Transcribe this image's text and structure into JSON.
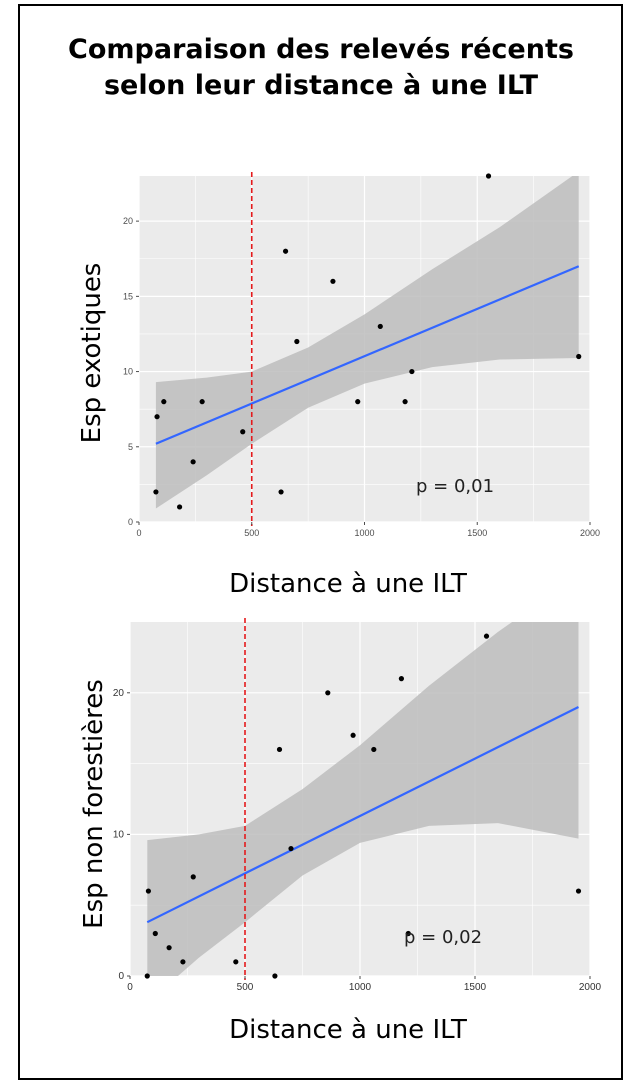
{
  "title": {
    "line1": "Comparaison des relevés récents",
    "line2": "selon leur distance à une ILT"
  },
  "chart_data": [
    {
      "type": "scatter",
      "ylabel": "Esp exotiques",
      "xlabel": "Distance à une ILT",
      "xlim": [
        0,
        2000
      ],
      "ylim": [
        0,
        23
      ],
      "x_ticks": [
        0,
        500,
        1000,
        1500,
        2000
      ],
      "y_ticks": [
        0,
        5,
        10,
        15,
        20
      ],
      "points": [
        {
          "x": 75,
          "y": 2
        },
        {
          "x": 80,
          "y": 7
        },
        {
          "x": 110,
          "y": 8
        },
        {
          "x": 180,
          "y": 1
        },
        {
          "x": 240,
          "y": 4
        },
        {
          "x": 280,
          "y": 8
        },
        {
          "x": 460,
          "y": 6
        },
        {
          "x": 630,
          "y": 2
        },
        {
          "x": 650,
          "y": 18
        },
        {
          "x": 700,
          "y": 12
        },
        {
          "x": 860,
          "y": 16
        },
        {
          "x": 970,
          "y": 8
        },
        {
          "x": 1070,
          "y": 13
        },
        {
          "x": 1180,
          "y": 8
        },
        {
          "x": 1210,
          "y": 10
        },
        {
          "x": 1550,
          "y": 23
        },
        {
          "x": 1950,
          "y": 11
        }
      ],
      "fit_line": {
        "x": [
          75,
          1950
        ],
        "y": [
          5.2,
          17
        ]
      },
      "confidence_band": {
        "x": [
          75,
          300,
          500,
          750,
          1000,
          1300,
          1600,
          1950
        ],
        "upper": [
          9.3,
          9.6,
          10,
          11.6,
          13.8,
          16.8,
          19.6,
          23.3
        ],
        "lower": [
          0.9,
          3.1,
          5.2,
          7.6,
          9.2,
          10.3,
          10.8,
          10.9
        ]
      },
      "threshold_x": 500,
      "annotation": "p = 0,01",
      "colors": {
        "panel": "#ebebeb",
        "grid": "#ffffff",
        "band": "#bdbdbd",
        "fit": "#3366ff",
        "threshold": "#e41a1c",
        "point": "#000000"
      }
    },
    {
      "type": "scatter",
      "ylabel": "Esp non forestières",
      "xlabel": "Distance à une ILT",
      "xlim": [
        0,
        2000
      ],
      "ylim": [
        0,
        25
      ],
      "x_ticks": [
        0,
        500,
        1000,
        1500,
        2000
      ],
      "y_ticks": [
        0,
        10,
        20
      ],
      "points": [
        {
          "x": 75,
          "y": 0
        },
        {
          "x": 80,
          "y": 6
        },
        {
          "x": 110,
          "y": 3
        },
        {
          "x": 170,
          "y": 2
        },
        {
          "x": 230,
          "y": 1
        },
        {
          "x": 275,
          "y": 7
        },
        {
          "x": 460,
          "y": 1
        },
        {
          "x": 630,
          "y": 0
        },
        {
          "x": 650,
          "y": 16
        },
        {
          "x": 700,
          "y": 9
        },
        {
          "x": 860,
          "y": 20
        },
        {
          "x": 970,
          "y": 17
        },
        {
          "x": 1060,
          "y": 16
        },
        {
          "x": 1180,
          "y": 21
        },
        {
          "x": 1210,
          "y": 3
        },
        {
          "x": 1550,
          "y": 24
        },
        {
          "x": 1950,
          "y": 6
        }
      ],
      "fit_line": {
        "x": [
          75,
          1950
        ],
        "y": [
          3.8,
          19
        ]
      },
      "confidence_band": {
        "x": [
          75,
          300,
          500,
          750,
          1000,
          1300,
          1600,
          1950
        ],
        "upper": [
          9.6,
          10,
          10.6,
          13.2,
          16.3,
          20.5,
          24.3,
          28.3
        ],
        "lower": [
          -1.9,
          1.3,
          3.8,
          7.1,
          9.4,
          10.6,
          10.8,
          9.7
        ]
      },
      "threshold_x": 500,
      "annotation": "p = 0,02",
      "colors": {
        "panel": "#ebebeb",
        "grid": "#ffffff",
        "band": "#bdbdbd",
        "fit": "#3366ff",
        "threshold": "#e41a1c",
        "point": "#000000"
      }
    }
  ]
}
